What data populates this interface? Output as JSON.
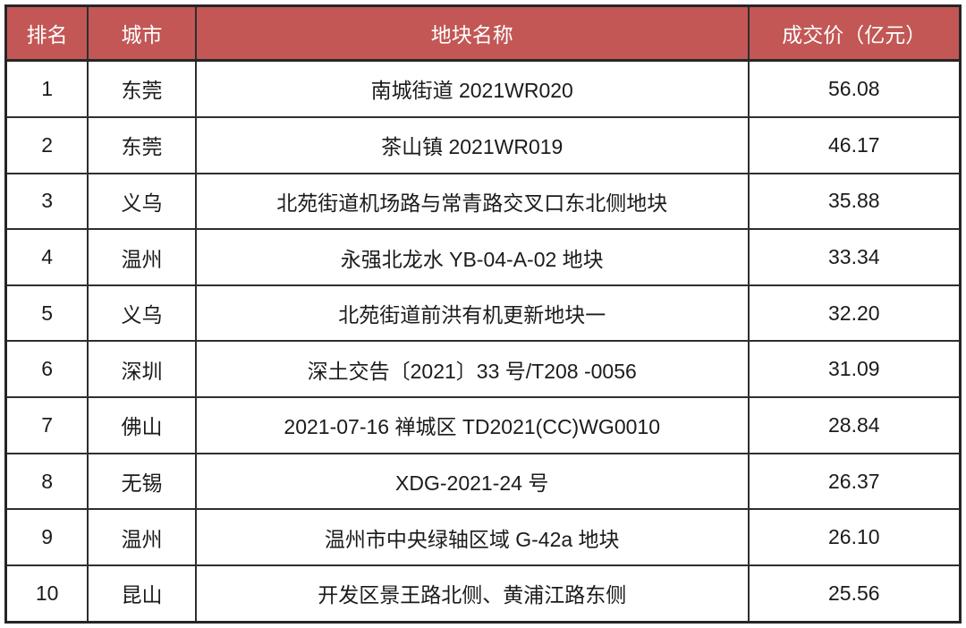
{
  "chart_data": {
    "type": "table",
    "title": "",
    "columns": [
      "排名",
      "城市",
      "地块名称",
      "成交价（亿元）"
    ],
    "rows": [
      {
        "rank": "1",
        "city": "东莞",
        "parcel": "南城街道 2021WR020",
        "price": "56.08"
      },
      {
        "rank": "2",
        "city": "东莞",
        "parcel": "茶山镇 2021WR019",
        "price": "46.17"
      },
      {
        "rank": "3",
        "city": "义乌",
        "parcel": "北苑街道机场路与常青路交叉口东北侧地块",
        "price": "35.88"
      },
      {
        "rank": "4",
        "city": "温州",
        "parcel": "永强北龙水 YB-04-A-02 地块",
        "price": "33.34"
      },
      {
        "rank": "5",
        "city": "义乌",
        "parcel": "北苑街道前洪有机更新地块一",
        "price": "32.20"
      },
      {
        "rank": "6",
        "city": "深圳",
        "parcel": "深土交告〔2021〕33 号/T208 -0056",
        "price": "31.09"
      },
      {
        "rank": "7",
        "city": "佛山",
        "parcel": "2021-07-16 禅城区 TD2021(CC)WG0010",
        "price": "28.84"
      },
      {
        "rank": "8",
        "city": "无锡",
        "parcel": "XDG-2021-24 号",
        "price": "26.37"
      },
      {
        "rank": "9",
        "city": "温州",
        "parcel": "温州市中央绿轴区域 G-42a 地块",
        "price": "26.10"
      },
      {
        "rank": "10",
        "city": "昆山",
        "parcel": "开发区景王路北侧、黄浦江路东侧",
        "price": "25.56"
      }
    ],
    "colors": {
      "header_bg": "#c25755",
      "header_text": "#ffffff",
      "body_bg": "#ffffff",
      "body_text": "#1b1b1b",
      "border": "#2e2e2e",
      "outer_border": "#262626"
    }
  }
}
